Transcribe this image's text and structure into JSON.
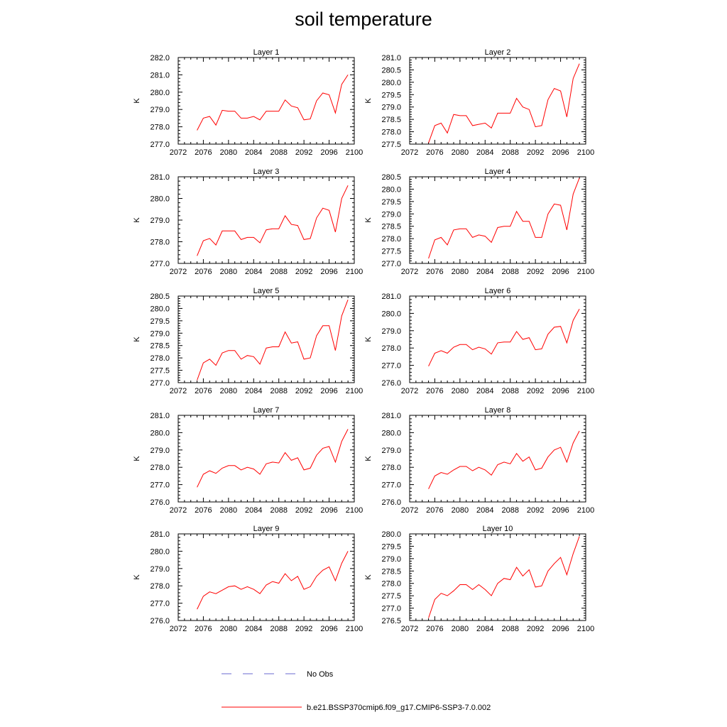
{
  "title": "soil temperature",
  "legend": {
    "placement": "bottom-center",
    "entries": [
      {
        "label": "No Obs",
        "color": "#6a6ad0",
        "style": "dashed"
      },
      {
        "label": "b.e21.BSSP370cmip6.f09_g17.CMIP6-SSP3-7.0.002",
        "color": "#ff0000",
        "style": "solid"
      }
    ]
  },
  "chart_data": [
    {
      "type": "line",
      "title": "Layer 1",
      "ylabel": "K",
      "xlim": [
        2072,
        2100
      ],
      "ylim": [
        277.0,
        282.0
      ],
      "xticks": [
        2072,
        2076,
        2080,
        2084,
        2088,
        2092,
        2096,
        2100
      ],
      "yticks": [
        "277.0",
        "278.0",
        "279.0",
        "280.0",
        "281.0",
        "282.0"
      ],
      "series": [
        {
          "name": "b.e21.BSSP370cmip6.f09_g17.CMIP6-SSP3-7.0.002",
          "color": "#ff0000",
          "x": [
            2075,
            2076,
            2077,
            2078,
            2079,
            2080,
            2081,
            2082,
            2083,
            2084,
            2085,
            2086,
            2087,
            2088,
            2089,
            2090,
            2091,
            2092,
            2093,
            2094,
            2095,
            2096,
            2097,
            2098,
            2099
          ],
          "y": [
            277.8,
            278.5,
            278.6,
            278.1,
            278.95,
            278.9,
            278.9,
            278.5,
            278.5,
            278.6,
            278.4,
            278.9,
            278.9,
            278.9,
            279.55,
            279.2,
            279.1,
            278.4,
            278.45,
            279.5,
            279.95,
            279.85,
            278.8,
            280.45,
            281.0
          ]
        }
      ]
    },
    {
      "type": "line",
      "title": "Layer 2",
      "ylabel": "K",
      "xlim": [
        2072,
        2100
      ],
      "ylim": [
        277.5,
        281.0
      ],
      "xticks": [
        2072,
        2076,
        2080,
        2084,
        2088,
        2092,
        2096,
        2100
      ],
      "yticks": [
        "277.5",
        "278.0",
        "278.5",
        "279.0",
        "279.5",
        "280.0",
        "280.5",
        "281.0"
      ],
      "series": [
        {
          "name": "b.e21.BSSP370cmip6.f09_g17.CMIP6-SSP3-7.0.002",
          "color": "#ff0000",
          "x": [
            2075,
            2076,
            2077,
            2078,
            2079,
            2080,
            2081,
            2082,
            2083,
            2084,
            2085,
            2086,
            2087,
            2088,
            2089,
            2090,
            2091,
            2092,
            2093,
            2094,
            2095,
            2096,
            2097,
            2098,
            2099
          ],
          "y": [
            277.55,
            278.25,
            278.35,
            277.95,
            278.7,
            278.65,
            278.65,
            278.25,
            278.3,
            278.35,
            278.15,
            278.75,
            278.75,
            278.75,
            279.35,
            279.0,
            278.9,
            278.2,
            278.25,
            279.3,
            279.75,
            279.65,
            278.6,
            280.15,
            280.75
          ]
        }
      ]
    },
    {
      "type": "line",
      "title": "Layer 3",
      "ylabel": "K",
      "xlim": [
        2072,
        2100
      ],
      "ylim": [
        277.0,
        281.0
      ],
      "xticks": [
        2072,
        2076,
        2080,
        2084,
        2088,
        2092,
        2096,
        2100
      ],
      "yticks": [
        "277.0",
        "278.0",
        "279.0",
        "280.0",
        "281.0"
      ],
      "series": [
        {
          "name": "b.e21.BSSP370cmip6.f09_g17.CMIP6-SSP3-7.0.002",
          "color": "#ff0000",
          "x": [
            2075,
            2076,
            2077,
            2078,
            2079,
            2080,
            2081,
            2082,
            2083,
            2084,
            2085,
            2086,
            2087,
            2088,
            2089,
            2090,
            2091,
            2092,
            2093,
            2094,
            2095,
            2096,
            2097,
            2098,
            2099
          ],
          "y": [
            277.35,
            278.05,
            278.15,
            277.85,
            278.5,
            278.5,
            278.5,
            278.1,
            278.2,
            278.2,
            277.95,
            278.55,
            278.6,
            278.6,
            279.2,
            278.8,
            278.75,
            278.1,
            278.15,
            279.1,
            279.55,
            279.45,
            278.45,
            280.0,
            280.6
          ]
        }
      ]
    },
    {
      "type": "line",
      "title": "Layer 4",
      "ylabel": "K",
      "xlim": [
        2072,
        2100
      ],
      "ylim": [
        277.0,
        280.5
      ],
      "xticks": [
        2072,
        2076,
        2080,
        2084,
        2088,
        2092,
        2096,
        2100
      ],
      "yticks": [
        "277.0",
        "277.5",
        "278.0",
        "278.5",
        "279.0",
        "279.5",
        "280.0",
        "280.5"
      ],
      "series": [
        {
          "name": "b.e21.BSSP370cmip6.f09_g17.CMIP6-SSP3-7.0.002",
          "color": "#ff0000",
          "x": [
            2075,
            2076,
            2077,
            2078,
            2079,
            2080,
            2081,
            2082,
            2083,
            2084,
            2085,
            2086,
            2087,
            2088,
            2089,
            2090,
            2091,
            2092,
            2093,
            2094,
            2095,
            2096,
            2097,
            2098,
            2099
          ],
          "y": [
            277.2,
            277.95,
            278.05,
            277.75,
            278.35,
            278.4,
            278.4,
            278.05,
            278.15,
            278.1,
            277.85,
            278.45,
            278.5,
            278.5,
            279.1,
            278.7,
            278.7,
            278.05,
            278.05,
            279.0,
            279.4,
            279.35,
            278.35,
            279.8,
            280.45
          ]
        }
      ]
    },
    {
      "type": "line",
      "title": "Layer 5",
      "ylabel": "K",
      "xlim": [
        2072,
        2100
      ],
      "ylim": [
        277.0,
        280.5
      ],
      "xticks": [
        2072,
        2076,
        2080,
        2084,
        2088,
        2092,
        2096,
        2100
      ],
      "yticks": [
        "277.0",
        "277.5",
        "278.0",
        "278.5",
        "279.0",
        "279.5",
        "280.0",
        "280.5"
      ],
      "series": [
        {
          "name": "b.e21.BSSP370cmip6.f09_g17.CMIP6-SSP3-7.0.002",
          "color": "#ff0000",
          "x": [
            2075,
            2076,
            2077,
            2078,
            2079,
            2080,
            2081,
            2082,
            2083,
            2084,
            2085,
            2086,
            2087,
            2088,
            2089,
            2090,
            2091,
            2092,
            2093,
            2094,
            2095,
            2096,
            2097,
            2098,
            2099
          ],
          "y": [
            277.1,
            277.8,
            277.95,
            277.7,
            278.2,
            278.3,
            278.3,
            277.95,
            278.1,
            278.05,
            277.75,
            278.4,
            278.45,
            278.45,
            279.05,
            278.6,
            278.65,
            277.95,
            278.0,
            278.9,
            279.3,
            279.3,
            278.3,
            279.7,
            280.35
          ]
        }
      ]
    },
    {
      "type": "line",
      "title": "Layer 6",
      "ylabel": "K",
      "xlim": [
        2072,
        2100
      ],
      "ylim": [
        276.0,
        281.0
      ],
      "xticks": [
        2072,
        2076,
        2080,
        2084,
        2088,
        2092,
        2096,
        2100
      ],
      "yticks": [
        "276.0",
        "277.0",
        "278.0",
        "279.0",
        "280.0",
        "281.0"
      ],
      "series": [
        {
          "name": "b.e21.BSSP370cmip6.f09_g17.CMIP6-SSP3-7.0.002",
          "color": "#ff0000",
          "x": [
            2075,
            2076,
            2077,
            2078,
            2079,
            2080,
            2081,
            2082,
            2083,
            2084,
            2085,
            2086,
            2087,
            2088,
            2089,
            2090,
            2091,
            2092,
            2093,
            2094,
            2095,
            2096,
            2097,
            2098,
            2099
          ],
          "y": [
            276.95,
            277.7,
            277.85,
            277.7,
            278.05,
            278.2,
            278.2,
            277.9,
            278.05,
            277.95,
            277.65,
            278.3,
            278.35,
            278.35,
            278.95,
            278.5,
            278.6,
            277.9,
            277.95,
            278.8,
            279.2,
            279.25,
            278.3,
            279.6,
            280.25
          ]
        }
      ]
    },
    {
      "type": "line",
      "title": "Layer 7",
      "ylabel": "K",
      "xlim": [
        2072,
        2100
      ],
      "ylim": [
        276.0,
        281.0
      ],
      "xticks": [
        2072,
        2076,
        2080,
        2084,
        2088,
        2092,
        2096,
        2100
      ],
      "yticks": [
        "276.0",
        "277.0",
        "278.0",
        "279.0",
        "280.0",
        "281.0"
      ],
      "series": [
        {
          "name": "b.e21.BSSP370cmip6.f09_g17.CMIP6-SSP3-7.0.002",
          "color": "#ff0000",
          "x": [
            2075,
            2076,
            2077,
            2078,
            2079,
            2080,
            2081,
            2082,
            2083,
            2084,
            2085,
            2086,
            2087,
            2088,
            2089,
            2090,
            2091,
            2092,
            2093,
            2094,
            2095,
            2096,
            2097,
            2098,
            2099
          ],
          "y": [
            276.85,
            277.6,
            277.8,
            277.65,
            277.95,
            278.1,
            278.1,
            277.85,
            278.0,
            277.9,
            277.6,
            278.2,
            278.3,
            278.25,
            278.85,
            278.4,
            278.55,
            277.85,
            277.95,
            278.7,
            279.1,
            279.2,
            278.3,
            279.5,
            280.2
          ]
        }
      ]
    },
    {
      "type": "line",
      "title": "Layer 8",
      "ylabel": "K",
      "xlim": [
        2072,
        2100
      ],
      "ylim": [
        276.0,
        281.0
      ],
      "xticks": [
        2072,
        2076,
        2080,
        2084,
        2088,
        2092,
        2096,
        2100
      ],
      "yticks": [
        "276.0",
        "277.0",
        "278.0",
        "279.0",
        "280.0",
        "281.0"
      ],
      "series": [
        {
          "name": "b.e21.BSSP370cmip6.f09_g17.CMIP6-SSP3-7.0.002",
          "color": "#ff0000",
          "x": [
            2075,
            2076,
            2077,
            2078,
            2079,
            2080,
            2081,
            2082,
            2083,
            2084,
            2085,
            2086,
            2087,
            2088,
            2089,
            2090,
            2091,
            2092,
            2093,
            2094,
            2095,
            2096,
            2097,
            2098,
            2099
          ],
          "y": [
            276.75,
            277.5,
            277.7,
            277.6,
            277.85,
            278.05,
            278.05,
            277.8,
            278.0,
            277.85,
            277.55,
            278.15,
            278.3,
            278.2,
            278.8,
            278.35,
            278.6,
            277.85,
            277.95,
            278.6,
            279.0,
            279.15,
            278.3,
            279.4,
            280.1
          ]
        }
      ]
    },
    {
      "type": "line",
      "title": "Layer 9",
      "ylabel": "K",
      "xlim": [
        2072,
        2100
      ],
      "ylim": [
        276.0,
        281.0
      ],
      "xticks": [
        2072,
        2076,
        2080,
        2084,
        2088,
        2092,
        2096,
        2100
      ],
      "yticks": [
        "276.0",
        "277.0",
        "278.0",
        "279.0",
        "280.0",
        "281.0"
      ],
      "series": [
        {
          "name": "b.e21.BSSP370cmip6.f09_g17.CMIP6-SSP3-7.0.002",
          "color": "#ff0000",
          "x": [
            2075,
            2076,
            2077,
            2078,
            2079,
            2080,
            2081,
            2082,
            2083,
            2084,
            2085,
            2086,
            2087,
            2088,
            2089,
            2090,
            2091,
            2092,
            2093,
            2094,
            2095,
            2096,
            2097,
            2098,
            2099
          ],
          "y": [
            276.65,
            277.4,
            277.65,
            277.55,
            277.75,
            277.95,
            278.0,
            277.8,
            277.95,
            277.8,
            277.55,
            278.05,
            278.25,
            278.15,
            278.7,
            278.3,
            278.55,
            277.8,
            277.95,
            278.55,
            278.9,
            279.1,
            278.3,
            279.3,
            280.0
          ]
        }
      ]
    },
    {
      "type": "line",
      "title": "Layer 10",
      "ylabel": "K",
      "xlim": [
        2072,
        2100
      ],
      "ylim": [
        276.5,
        280.0
      ],
      "xticks": [
        2072,
        2076,
        2080,
        2084,
        2088,
        2092,
        2096,
        2100
      ],
      "yticks": [
        "276.5",
        "277.0",
        "277.5",
        "278.0",
        "278.5",
        "279.0",
        "279.5",
        "280.0"
      ],
      "series": [
        {
          "name": "b.e21.BSSP370cmip6.f09_g17.CMIP6-SSP3-7.0.002",
          "color": "#ff0000",
          "x": [
            2075,
            2076,
            2077,
            2078,
            2079,
            2080,
            2081,
            2082,
            2083,
            2084,
            2085,
            2086,
            2087,
            2088,
            2089,
            2090,
            2091,
            2092,
            2093,
            2094,
            2095,
            2096,
            2097,
            2098,
            2099
          ],
          "y": [
            276.6,
            277.35,
            277.6,
            277.5,
            277.7,
            277.95,
            277.95,
            277.75,
            277.95,
            277.75,
            277.5,
            278.0,
            278.2,
            278.15,
            278.65,
            278.3,
            278.55,
            277.85,
            277.9,
            278.5,
            278.8,
            279.05,
            278.35,
            279.2,
            279.9
          ]
        }
      ]
    }
  ]
}
